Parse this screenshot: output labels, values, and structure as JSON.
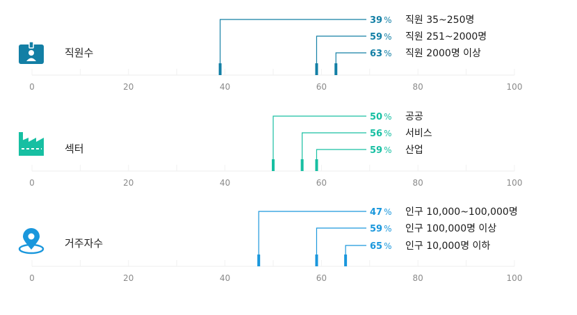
{
  "chart_data": {
    "type": "scatter",
    "xlim": [
      0,
      100
    ],
    "ticks": [
      0,
      20,
      40,
      60,
      80,
      100
    ],
    "unit": "%",
    "panels": [
      {
        "label": "직원수",
        "icon": "id-badge-icon",
        "color": "#137fa5",
        "points": [
          {
            "value": 39,
            "label": "직원 35~250명"
          },
          {
            "value": 59,
            "label": "직원 251~2000명"
          },
          {
            "value": 63,
            "label": "직원 2000명 이상"
          }
        ]
      },
      {
        "label": "섹터",
        "icon": "factory-icon",
        "color": "#17bfa2",
        "points": [
          {
            "value": 50,
            "label": "공공"
          },
          {
            "value": 56,
            "label": "서비스"
          },
          {
            "value": 59,
            "label": "산업"
          }
        ]
      },
      {
        "label": "거주자수",
        "icon": "location-pin-icon",
        "color": "#1a97dc",
        "points": [
          {
            "value": 47,
            "label": "인구 10,000~100,000명"
          },
          {
            "value": 59,
            "label": "인구 100,000명 이상"
          },
          {
            "value": 65,
            "label": "인구 10,000명 이하"
          }
        ]
      }
    ]
  }
}
